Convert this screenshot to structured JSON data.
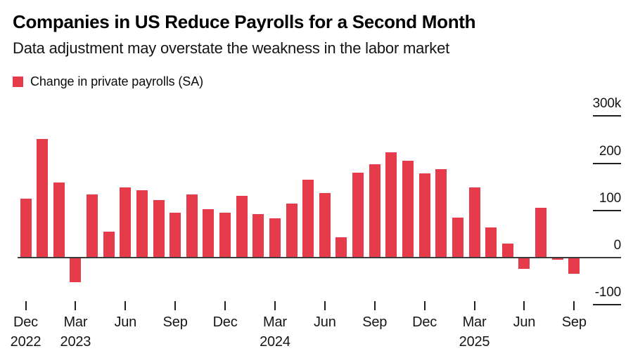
{
  "header": {
    "title": "Companies in US Reduce Payrolls for a Second Month",
    "subtitle": "Data adjustment may overstate the weakness in the labor market"
  },
  "legend": {
    "label": "Change in private payrolls (SA)"
  },
  "colors": {
    "bar": "#e63b4a",
    "axis_line": "#3d3d3d",
    "tick": "#1f1f1f",
    "text": "#161616"
  },
  "chart_data": {
    "type": "bar",
    "title": "Companies in US Reduce Payrolls for a Second Month",
    "subtitle": "Data adjustment may overstate the weakness in the labor market",
    "series_name": "Change in private payrolls (SA)",
    "unit": "thousands of jobs",
    "grid": false,
    "legend_position": "top-left",
    "ylim": [
      -100,
      300
    ],
    "x": [
      "Dec 2022",
      "Jan 2023",
      "Feb 2023",
      "Mar 2023",
      "Apr 2023",
      "May 2023",
      "Jun 2023",
      "Jul 2023",
      "Aug 2023",
      "Sep 2023",
      "Oct 2023",
      "Nov 2023",
      "Dec 2023",
      "Jan 2024",
      "Feb 2024",
      "Mar 2024",
      "Apr 2024",
      "May 2024",
      "Jun 2024",
      "Jul 2024",
      "Aug 2024",
      "Sep 2024",
      "Oct 2024",
      "Nov 2024",
      "Dec 2024",
      "Jan 2025",
      "Feb 2025",
      "Mar 2025",
      "Apr 2025",
      "May 2025",
      "Jun 2025",
      "Jul 2025",
      "Aug 2025",
      "Sep 2025"
    ],
    "values": [
      124,
      250,
      158,
      -51,
      133,
      53,
      147,
      141,
      120,
      94,
      132,
      101,
      94,
      129,
      91,
      82,
      113,
      163,
      136,
      42,
      179,
      196,
      222,
      204,
      177,
      186,
      84,
      147,
      62,
      29,
      -23,
      104,
      -3,
      -32
    ],
    "y_ticks": [
      {
        "label": "300k",
        "value": 300
      },
      {
        "label": "200",
        "value": 200
      },
      {
        "label": "100",
        "value": 100
      },
      {
        "label": "0",
        "value": 0
      },
      {
        "label": "-100",
        "value": -100
      }
    ],
    "x_ticks": [
      {
        "month": "Dec",
        "year": "2022",
        "index": 0
      },
      {
        "month": "Mar",
        "year": "2023",
        "index": 3
      },
      {
        "month": "Jun",
        "index": 6
      },
      {
        "month": "Sep",
        "index": 9
      },
      {
        "month": "Dec",
        "index": 12
      },
      {
        "month": "Mar",
        "year": "2024",
        "index": 15
      },
      {
        "month": "Jun",
        "index": 18
      },
      {
        "month": "Sep",
        "index": 21
      },
      {
        "month": "Dec",
        "index": 24
      },
      {
        "month": "Mar",
        "year": "2025",
        "index": 27
      },
      {
        "month": "Jun",
        "index": 30
      },
      {
        "month": "Sep",
        "index": 33
      }
    ]
  }
}
